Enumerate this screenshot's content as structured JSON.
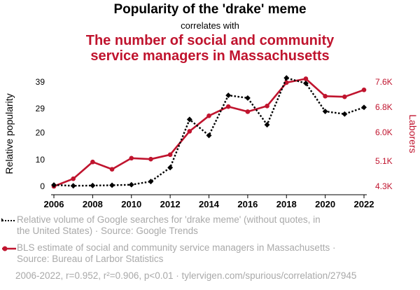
{
  "header": {
    "title": "Popularity of the 'drake' meme",
    "subtitle": "correlates with",
    "title2_line1": "The number of social and community",
    "title2_line2": "service managers in Massachusetts"
  },
  "chart_data": {
    "type": "line",
    "x": [
      2006,
      2007,
      2008,
      2009,
      2010,
      2011,
      2012,
      2013,
      2014,
      2015,
      2016,
      2017,
      2018,
      2019,
      2020,
      2021,
      2022
    ],
    "x_ticks": [
      "2006",
      "2008",
      "2010",
      "2012",
      "2014",
      "2016",
      "2018",
      "2020",
      "2022"
    ],
    "ylabel_left": "Relative popularity",
    "ylabel_right": "Laborers",
    "y_left_ticks": [
      "0",
      "10",
      "20",
      "29",
      "39"
    ],
    "y_right_ticks": [
      "4.3K",
      "5.1K",
      "6.0K",
      "6.8K",
      "7.6K"
    ],
    "y_left_range": [
      0,
      39
    ],
    "y_right_range": [
      4300,
      7600
    ],
    "series": [
      {
        "name": "Relative volume of Google searches for 'drake meme' (without quotes, in the United States) · Source: Google Trends",
        "axis": "left",
        "color": "#000000",
        "style": "dotted",
        "marker": "diamond",
        "values": [
          0.5,
          0.2,
          0.3,
          0.4,
          0.6,
          1.8,
          7,
          25,
          19,
          34,
          33,
          23,
          40.5,
          38.5,
          28,
          27,
          29.5
        ]
      },
      {
        "name": "BLS estimate of social and community service managers in Massachusetts · Source: Bureau of Larbor Statistics",
        "axis": "right",
        "color": "#c0142e",
        "style": "solid",
        "marker": "circle",
        "values": [
          4300,
          4540,
          5070,
          4840,
          5190,
          5160,
          5300,
          6040,
          6530,
          6820,
          6660,
          6840,
          7580,
          7700,
          7150,
          7130,
          7350
        ]
      }
    ],
    "legend_line1": "Relative volume of Google searches for 'drake meme' (without quotes, in",
    "legend_line2": "the United States) · Source: Google Trends",
    "legend2_line1": "BLS estimate of social and community service managers in Massachusetts ·",
    "legend2_line2": "Source: Bureau of Larbor Statistics",
    "legend_placement": "bottom",
    "grid": false
  },
  "footer": {
    "text": "2006-2022, r=0.952, r²=0.906, p<0.01 · tylervigen.com/spurious/correlation/27945"
  }
}
